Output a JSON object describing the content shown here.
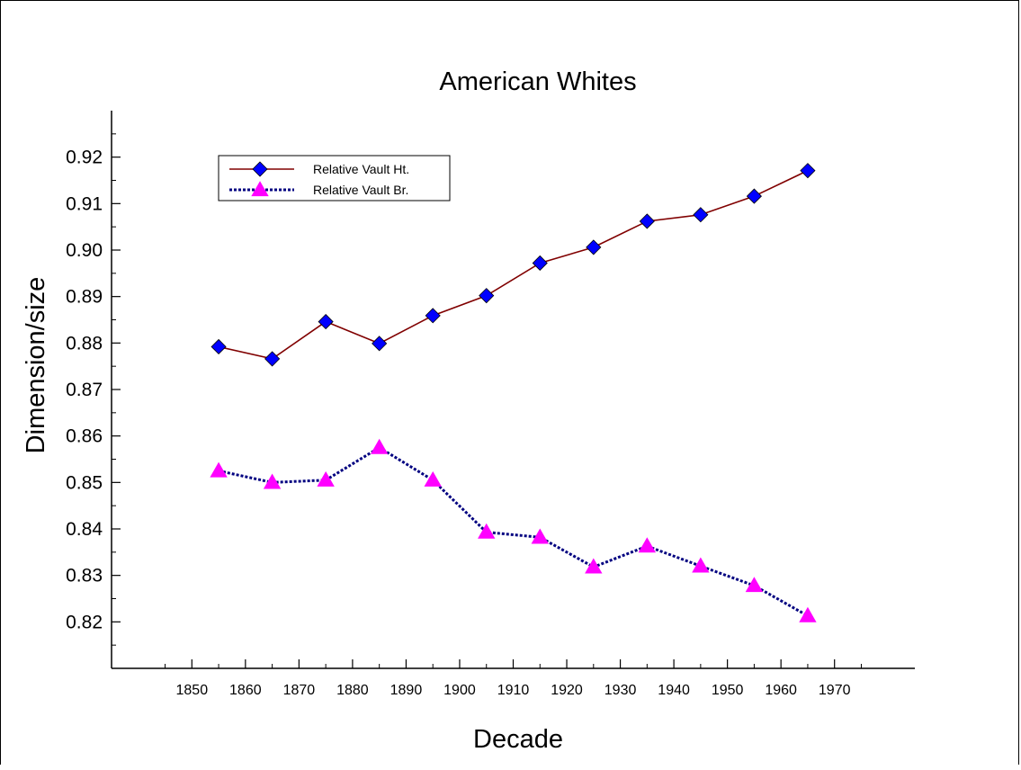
{
  "chart_data": {
    "type": "line",
    "title": "American Whites",
    "xlabel": "Decade",
    "ylabel": "Dimension/size",
    "xlim": [
      1835,
      1985
    ],
    "ylim": [
      0.81,
      0.93
    ],
    "x_ticks": [
      1850,
      1860,
      1870,
      1880,
      1890,
      1900,
      1910,
      1920,
      1930,
      1940,
      1950,
      1960,
      1970
    ],
    "y_ticks": [
      "0.82",
      "0.83",
      "0.84",
      "0.85",
      "0.86",
      "0.87",
      "0.88",
      "0.89",
      "0.90",
      "0.91",
      "0.92"
    ],
    "grid": false,
    "legend": "top-left",
    "x": [
      1855,
      1865,
      1875,
      1885,
      1895,
      1905,
      1915,
      1925,
      1935,
      1945,
      1955,
      1965
    ],
    "series": [
      {
        "name": "Relative Vault Ht.",
        "values": [
          0.8792,
          0.8766,
          0.8846,
          0.8799,
          0.8859,
          0.8902,
          0.8972,
          0.9006,
          0.9062,
          0.9076,
          0.9116,
          0.9171
        ],
        "line_color": "#800000",
        "marker_color": "#0000ff",
        "marker": "diamond",
        "line_style": "solid"
      },
      {
        "name": "Relative Vault Br.",
        "values": [
          0.8525,
          0.85,
          0.8505,
          0.8575,
          0.8505,
          0.8393,
          0.8382,
          0.8318,
          0.8363,
          0.832,
          0.8278,
          0.8213
        ],
        "line_color": "#000080",
        "marker_color": "#ff00ff",
        "marker": "triangle",
        "line_style": "dotted"
      }
    ]
  }
}
